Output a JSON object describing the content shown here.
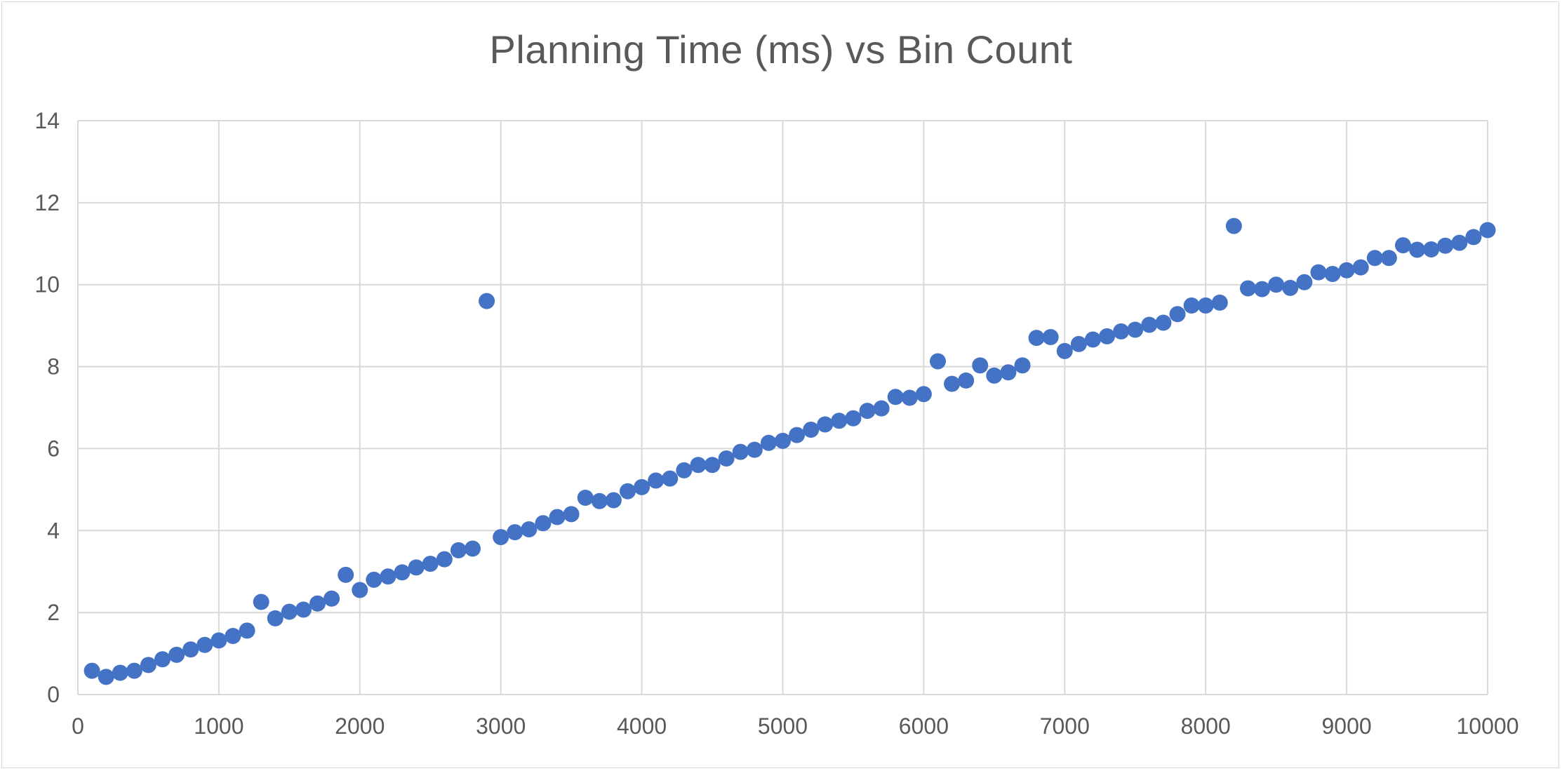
{
  "chart_data": {
    "type": "scatter",
    "title": "Planning Time (ms) vs Bin Count",
    "xlabel": "",
    "ylabel": "",
    "xlim": [
      0,
      10000
    ],
    "ylim": [
      0,
      14
    ],
    "xticks": [
      0,
      1000,
      2000,
      3000,
      4000,
      5000,
      6000,
      7000,
      8000,
      9000,
      10000
    ],
    "yticks": [
      0,
      2,
      4,
      6,
      8,
      10,
      12,
      14
    ],
    "grid": true,
    "legend": "none",
    "marker_color": "#4472C4",
    "gridline_color": "#d9d9d9",
    "text_color": "#595959",
    "series": [
      {
        "x": [
          100,
          200,
          300,
          400,
          500,
          600,
          700,
          800,
          900,
          1000,
          1100,
          1200,
          1300,
          1400,
          1500,
          1600,
          1700,
          1800,
          1900,
          2000,
          2100,
          2200,
          2300,
          2400,
          2500,
          2600,
          2700,
          2800,
          2900,
          3000,
          3100,
          3200,
          3300,
          3400,
          3500,
          3600,
          3700,
          3800,
          3900,
          4000,
          4100,
          4200,
          4300,
          4400,
          4500,
          4600,
          4700,
          4800,
          4900,
          5000,
          5100,
          5200,
          5300,
          5400,
          5500,
          5600,
          5700,
          5800,
          5900,
          6000,
          6100,
          6200,
          6300,
          6400,
          6500,
          6600,
          6700,
          6800,
          6900,
          7000,
          7100,
          7200,
          7300,
          7400,
          7500,
          7600,
          7700,
          7800,
          7900,
          8000,
          8100,
          8200,
          8300,
          8400,
          8500,
          8600,
          8700,
          8800,
          8900,
          9000,
          9100,
          9200,
          9300,
          9400,
          9500,
          9600,
          9700,
          9800,
          9900,
          10000
        ],
        "y": [
          0.58,
          0.43,
          0.53,
          0.58,
          0.72,
          0.86,
          0.97,
          1.1,
          1.21,
          1.32,
          1.43,
          1.56,
          2.26,
          1.86,
          2.02,
          2.07,
          2.22,
          2.34,
          2.92,
          2.55,
          2.8,
          2.88,
          2.98,
          3.1,
          3.19,
          3.3,
          3.52,
          3.56,
          9.6,
          3.84,
          3.96,
          4.03,
          4.18,
          4.33,
          4.4,
          4.8,
          4.72,
          4.74,
          4.96,
          5.06,
          5.22,
          5.27,
          5.47,
          5.6,
          5.6,
          5.76,
          5.92,
          5.97,
          6.14,
          6.19,
          6.33,
          6.46,
          6.59,
          6.68,
          6.74,
          6.92,
          6.98,
          7.26,
          7.24,
          7.33,
          8.13,
          7.58,
          7.66,
          8.03,
          7.78,
          7.86,
          8.03,
          8.7,
          8.72,
          8.38,
          8.55,
          8.66,
          8.74,
          8.86,
          8.9,
          9.02,
          9.07,
          9.28,
          9.49,
          9.49,
          9.56,
          11.43,
          9.91,
          9.89,
          10.0,
          9.92,
          10.06,
          10.3,
          10.26,
          10.35,
          10.42,
          10.65,
          10.65,
          10.96,
          10.85,
          10.86,
          10.95,
          11.02,
          11.16,
          11.33
        ]
      }
    ]
  }
}
